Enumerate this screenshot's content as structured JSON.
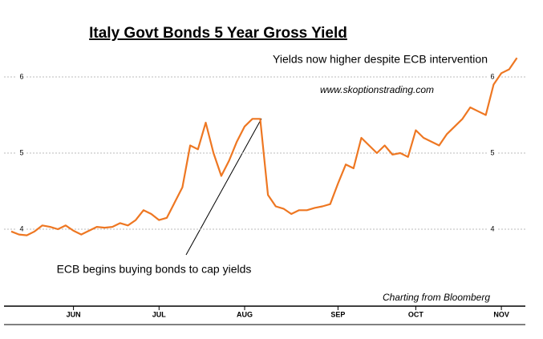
{
  "chart_data": {
    "type": "line",
    "title": "Italy Govt Bonds 5 Year Gross Yield",
    "annotations": [
      "Yields now higher despite ECB intervention",
      "www.skoptionstrading.com",
      "ECB begins buying bonds to cap yields",
      "Charting from Bloomberg"
    ],
    "categories": [
      null,
      null,
      null,
      null,
      null,
      null,
      null,
      null,
      "JUN",
      null,
      null,
      null,
      null,
      null,
      null,
      null,
      null,
      null,
      null,
      "JUL",
      null,
      null,
      null,
      null,
      null,
      null,
      null,
      null,
      null,
      null,
      "AUG",
      null,
      null,
      null,
      null,
      null,
      null,
      null,
      null,
      null,
      null,
      null,
      "SEP",
      null,
      null,
      null,
      null,
      null,
      null,
      null,
      null,
      null,
      "OCT",
      null,
      null,
      null,
      null,
      null,
      null,
      null,
      null,
      null,
      null,
      "NOV",
      null,
      null
    ],
    "series": [
      {
        "name": "Yield",
        "color": "#ee7722",
        "values": [
          3.97,
          3.93,
          3.92,
          3.97,
          4.05,
          4.03,
          4.0,
          4.05,
          3.98,
          3.93,
          3.98,
          4.03,
          4.02,
          4.03,
          4.08,
          4.05,
          4.12,
          4.25,
          4.2,
          4.12,
          4.15,
          4.35,
          4.55,
          5.1,
          5.05,
          5.4,
          5.0,
          4.7,
          4.9,
          5.15,
          5.35,
          5.45,
          5.45,
          4.45,
          4.3,
          4.27,
          4.2,
          4.25,
          4.25,
          4.28,
          4.3,
          4.33,
          4.6,
          4.85,
          4.8,
          5.2,
          5.1,
          5.0,
          5.1,
          4.98,
          5.0,
          4.95,
          5.3,
          5.2,
          5.15,
          5.1,
          5.25,
          5.35,
          5.45,
          5.6,
          5.55,
          5.5,
          5.9,
          6.05,
          6.1,
          6.25
        ]
      }
    ],
    "ylim": [
      3,
      6.4
    ],
    "yticks": [
      4,
      5,
      6
    ],
    "grid": true
  }
}
